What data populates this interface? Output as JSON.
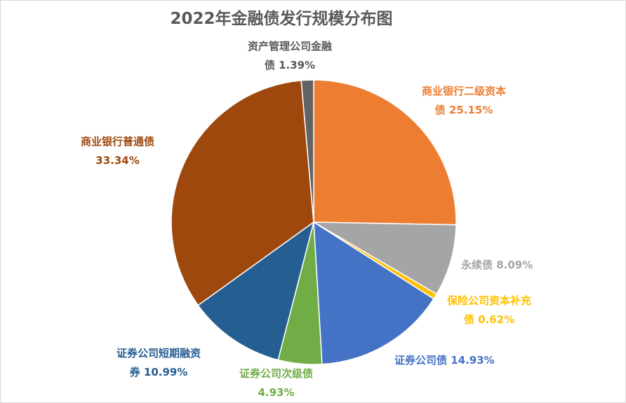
{
  "chart_data": {
    "type": "pie",
    "title": "2022年金融债发行规模分布图",
    "slices": [
      {
        "name": "商业银行二级资本债",
        "value": 25.15,
        "pct": "25.15%",
        "color": "#ED7D31"
      },
      {
        "name": "永续债",
        "value": 8.09,
        "pct": "8.09%",
        "color": "#A5A5A5"
      },
      {
        "name": "保险公司资本补充债",
        "value": 0.62,
        "pct": "0.62%",
        "color": "#FFC000"
      },
      {
        "name": "证券公司债",
        "value": 14.93,
        "pct": "14.93%",
        "color": "#4472C4"
      },
      {
        "name": "证券公司次级债",
        "value": 4.93,
        "pct": "4.93%",
        "color": "#70AD47"
      },
      {
        "name": "证券公司短期融资券",
        "value": 10.99,
        "pct": "10.99%",
        "color": "#255E91"
      },
      {
        "name": "商业银行普通债",
        "value": 33.34,
        "pct": "33.34%",
        "color": "#9E480E"
      },
      {
        "name": "资产管理公司金融债",
        "value": 1.39,
        "pct": "1.39%",
        "color": "#636363"
      }
    ],
    "labels": [
      {
        "line1": "商业银行二级资本",
        "line2": "债 25.15%"
      },
      {
        "line1": "永续债 8.09%",
        "line2": ""
      },
      {
        "line1": "保险公司资本补充",
        "line2": "债 0.62%"
      },
      {
        "line1": "证券公司债 14.93%",
        "line2": ""
      },
      {
        "line1": "证券公司次级债",
        "line2": "4.93%"
      },
      {
        "line1": "证券公司短期融资",
        "line2": "券 10.99%"
      },
      {
        "line1": "商业银行普通债",
        "line2": "33.34%"
      },
      {
        "line1": "资产管理公司金融",
        "line2": "债 1.39%"
      }
    ]
  }
}
